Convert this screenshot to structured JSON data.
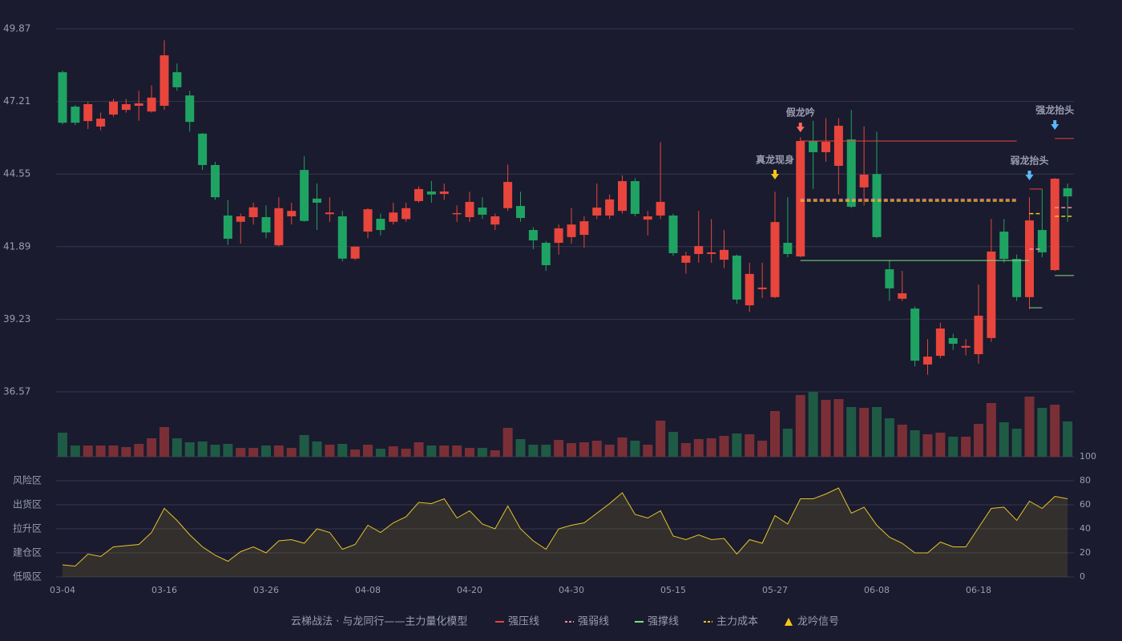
{
  "chart_data": {
    "type": "candlestick",
    "title": "云梯战法 · 与龙同行——主力量化模型",
    "categories": [
      "03-04",
      null,
      null,
      null,
      null,
      null,
      null,
      null,
      "03-16",
      null,
      null,
      null,
      null,
      null,
      null,
      null,
      "03-26",
      null,
      null,
      null,
      null,
      null,
      null,
      null,
      "04-08",
      null,
      null,
      null,
      null,
      null,
      null,
      null,
      "04-20",
      null,
      null,
      null,
      null,
      null,
      null,
      null,
      "04-30",
      null,
      null,
      null,
      null,
      null,
      null,
      null,
      "05-15",
      null,
      null,
      null,
      null,
      null,
      null,
      null,
      "05-27",
      null,
      null,
      null,
      null,
      null,
      null,
      null,
      "06-08",
      null,
      null,
      null,
      null,
      null,
      null,
      null,
      "06-18",
      null,
      null,
      null,
      null,
      null,
      null,
      null
    ],
    "open": [
      48.28,
      47.02,
      46.49,
      46.29,
      46.73,
      46.9,
      47.05,
      46.84,
      47.05,
      48.28,
      47.43,
      46.03,
      44.88,
      43.03,
      42.8,
      42.97,
      42.97,
      41.94,
      43.0,
      44.7,
      43.65,
      43.08,
      43.0,
      41.45,
      42.44,
      42.91,
      42.8,
      42.9,
      43.56,
      43.91,
      43.82,
      43.1,
      42.97,
      43.32,
      42.7,
      43.3,
      43.38,
      42.5,
      42.03,
      42.03,
      42.24,
      42.32,
      43.03,
      43.03,
      43.2,
      44.29,
      42.88,
      43.03,
      43.03,
      41.3,
      41.62,
      41.62,
      41.41,
      41.56,
      39.74,
      40.33,
      40.04,
      42.03,
      41.53,
      45.76,
      45.35,
      44.85,
      45.82,
      44.06,
      44.55,
      41.06,
      39.98,
      39.62,
      37.57,
      37.89,
      38.54,
      38.19,
      37.95,
      38.54,
      42.44,
      41.44,
      40.04,
      42.5,
      41.03,
      44.03
    ],
    "high": [
      48.34,
      47.08,
      47.2,
      46.8,
      47.3,
      47.3,
      47.6,
      47.8,
      49.45,
      48.6,
      47.6,
      46.05,
      45.0,
      43.6,
      43.1,
      43.5,
      43.4,
      43.7,
      43.5,
      45.2,
      44.2,
      43.7,
      43.2,
      41.9,
      43.3,
      43.1,
      43.5,
      43.5,
      44.1,
      44.3,
      44.2,
      43.4,
      43.9,
      43.7,
      43.1,
      44.9,
      43.9,
      42.6,
      42.1,
      42.7,
      43.3,
      43.0,
      44.2,
      43.8,
      44.5,
      44.4,
      43.2,
      45.72,
      43.1,
      41.7,
      43.2,
      42.9,
      42.5,
      41.6,
      41.3,
      41.3,
      43.9,
      43.7,
      45.9,
      46.5,
      46.6,
      46.6,
      46.9,
      46.3,
      46.1,
      41.4,
      41.0,
      39.7,
      38.5,
      39.1,
      38.7,
      38.5,
      40.5,
      42.9,
      42.9,
      41.6,
      43.7,
      44.0,
      44.4,
      44.2
    ],
    "low": [
      46.37,
      46.34,
      46.2,
      46.15,
      46.65,
      46.8,
      46.5,
      46.8,
      46.9,
      47.6,
      46.1,
      44.7,
      43.6,
      41.95,
      42.0,
      42.7,
      42.2,
      41.9,
      42.7,
      42.8,
      42.5,
      42.8,
      41.35,
      41.4,
      42.2,
      42.3,
      42.7,
      42.8,
      43.5,
      43.5,
      43.6,
      42.8,
      42.8,
      42.9,
      42.5,
      43.2,
      42.8,
      41.8,
      41.0,
      41.6,
      42.0,
      41.85,
      42.9,
      42.9,
      43.1,
      43.0,
      42.3,
      42.9,
      41.55,
      40.9,
      41.3,
      41.3,
      41.1,
      39.8,
      39.5,
      40.0,
      40.0,
      41.5,
      41.5,
      44.0,
      45.0,
      43.8,
      43.3,
      43.4,
      42.2,
      39.9,
      39.9,
      37.5,
      37.2,
      37.8,
      38.1,
      37.9,
      37.6,
      38.4,
      41.3,
      39.9,
      39.6,
      41.5,
      41.0,
      42.8
    ],
    "close": [
      46.43,
      46.43,
      47.11,
      46.58,
      47.2,
      47.11,
      47.14,
      47.35,
      48.9,
      47.73,
      46.46,
      44.88,
      43.7,
      42.18,
      43.0,
      43.33,
      42.41,
      43.3,
      43.2,
      42.83,
      43.5,
      43.14,
      41.45,
      41.89,
      43.26,
      42.5,
      43.14,
      43.3,
      44.0,
      43.8,
      43.91,
      43.12,
      43.53,
      43.06,
      43.0,
      44.26,
      42.94,
      42.12,
      41.21,
      42.56,
      42.7,
      42.82,
      43.32,
      43.62,
      44.29,
      43.09,
      43.0,
      43.53,
      41.65,
      41.56,
      41.91,
      41.68,
      41.77,
      39.95,
      40.89,
      40.39,
      42.79,
      41.62,
      45.76,
      45.35,
      45.73,
      46.32,
      43.35,
      44.53,
      42.24,
      40.36,
      40.18,
      37.71,
      37.86,
      38.89,
      38.33,
      38.25,
      39.36,
      41.71,
      41.44,
      40.04,
      42.85,
      41.68,
      44.38,
      43.73
    ],
    "up_color": "#e8453c",
    "down_color": "#1fa363",
    "ylim": [
      36.57,
      49.87
    ],
    "yticks": [
      49.87,
      47.21,
      44.55,
      41.89,
      39.23,
      36.57
    ],
    "grid": true,
    "volume": {
      "values": [
        30,
        14,
        14,
        14,
        14,
        12,
        16,
        23,
        37,
        23,
        18,
        19,
        15,
        16,
        11,
        11,
        14,
        14,
        11,
        27,
        19,
        15,
        16,
        9,
        15,
        10,
        13,
        10,
        18,
        14,
        14,
        14,
        11,
        11,
        8,
        36,
        22,
        15,
        15,
        21,
        17,
        18,
        20,
        15,
        24,
        20,
        15,
        45,
        31,
        17,
        22,
        23,
        26,
        29,
        28,
        20,
        57,
        35,
        77,
        81,
        71,
        72,
        62,
        61,
        62,
        48,
        40,
        33,
        28,
        30,
        25,
        25,
        41,
        67,
        43,
        35,
        75,
        61,
        65,
        44
      ]
    },
    "oscillator": {
      "values": [
        10,
        9,
        19,
        17,
        25,
        26,
        27,
        37,
        57,
        47,
        35,
        25,
        18,
        13,
        21,
        25,
        20,
        30,
        31,
        28,
        40,
        37,
        23,
        27,
        43,
        37,
        45,
        50,
        62,
        61,
        65,
        49,
        55,
        44,
        40,
        59,
        40,
        30,
        23,
        40,
        43,
        45,
        53,
        61,
        70,
        52,
        49,
        55,
        34,
        31,
        35,
        31,
        32,
        19,
        31,
        28,
        51,
        44,
        65,
        65,
        69,
        74,
        53,
        58,
        43,
        33,
        28,
        20,
        20,
        29,
        25,
        25,
        41,
        57,
        58,
        47,
        63,
        57,
        67,
        65
      ],
      "color": "#e6c229",
      "ylim": [
        0,
        100
      ],
      "yticks": [
        0,
        20,
        40,
        60,
        80,
        100
      ],
      "tick_colors": [
        "#ff4d6a",
        "#ff6060",
        "#4f8ff7",
        "#e040e0",
        "#f0a030",
        "#33dd55"
      ],
      "zones": [
        {
          "label": "风险区",
          "value": 80,
          "color": "#f0a030"
        },
        {
          "label": "出货区",
          "value": 60,
          "color": "#e040e0"
        },
        {
          "label": "拉升区",
          "value": 40,
          "color": "#4f8ff7"
        },
        {
          "label": "建仓区",
          "value": 20,
          "color": "#ff6060"
        },
        {
          "label": "低吸区",
          "value": 0,
          "color": "#ff4d6a"
        }
      ]
    },
    "levels": [
      {
        "name": "强压线",
        "color": "#e8453c",
        "dash": false,
        "segments": [
          {
            "x": [
              58,
              75
            ],
            "value": 45.76
          },
          {
            "x": [
              76,
              77
            ],
            "value": 44.0
          },
          {
            "x": [
              78,
              79.5
            ],
            "value": 45.85
          }
        ]
      },
      {
        "name": "强弱线",
        "color": "#ff8a9a",
        "dash": true,
        "segments": [
          {
            "x": [
              58,
              75
            ],
            "value": 43.62
          },
          {
            "x": [
              76,
              77
            ],
            "value": 41.8
          },
          {
            "x": [
              78,
              79.5
            ],
            "value": 43.32
          }
        ]
      },
      {
        "name": "强撑线",
        "color": "#7fe07f",
        "dash": false,
        "segments": [
          {
            "x": [
              58,
              76
            ],
            "value": 41.38
          },
          {
            "x": [
              76,
              77
            ],
            "value": 39.65
          },
          {
            "x": [
              78,
              79.5
            ],
            "value": 40.83
          }
        ]
      },
      {
        "name": "主力成本",
        "color": "#f5c518",
        "dash": true,
        "segments": [
          {
            "x": [
              58,
              75
            ],
            "value": 43.56
          },
          {
            "x": [
              76,
              77
            ],
            "value": 43.1
          },
          {
            "x": [
              78,
              79.5
            ],
            "value": 43.0
          }
        ]
      }
    ],
    "signals": [
      {
        "label": "假龙吟",
        "index": 58,
        "value": 46.08,
        "color": "#ff6b5b"
      },
      {
        "label": "真龙现身",
        "index": 56,
        "value": 44.35,
        "color": "#f5c518"
      },
      {
        "label": "弱龙抬头",
        "index": 76,
        "value": 44.32,
        "color": "#5bb8ff"
      },
      {
        "label": "强龙抬头",
        "index": 78,
        "value": 46.17,
        "color": "#5bb8ff"
      }
    ],
    "signal_legend": {
      "name": "龙吟信号",
      "color": "#f5c518"
    }
  }
}
